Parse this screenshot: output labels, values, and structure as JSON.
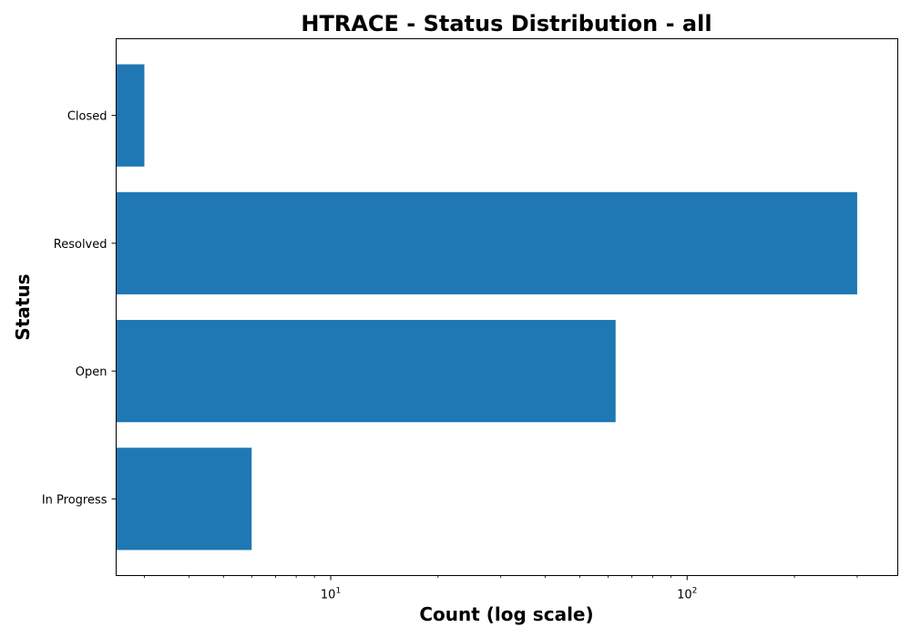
{
  "chart_data": {
    "type": "bar",
    "orientation": "horizontal",
    "title": "HTRACE - Status Distribution - all",
    "xlabel": "Count (log scale)",
    "ylabel": "Status",
    "x_scale": "log",
    "xlim": [
      2.5,
      390
    ],
    "categories": [
      "Closed",
      "Resolved",
      "Open",
      "In Progress"
    ],
    "values": [
      3,
      300,
      63,
      6
    ],
    "x_ticks": [
      {
        "value": 10,
        "base": "10",
        "exp": "1"
      },
      {
        "value": 100,
        "base": "10",
        "exp": "2"
      }
    ],
    "bar_color": "#1f77b4",
    "grid": false,
    "legend": "none"
  }
}
